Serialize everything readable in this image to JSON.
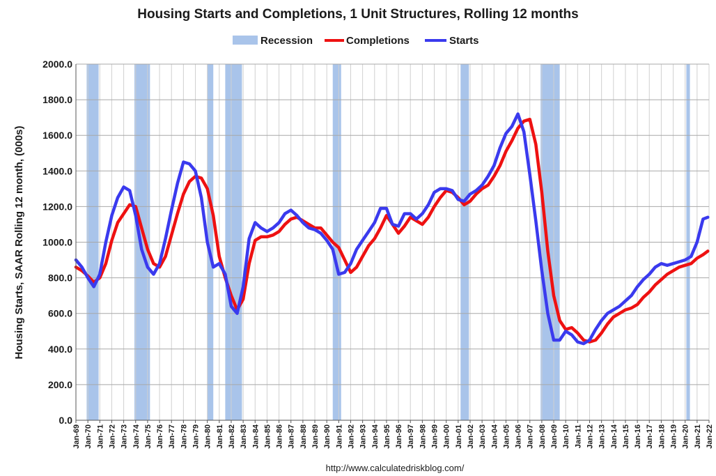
{
  "chart_data": {
    "type": "line",
    "title": "Housing Starts and Completions, 1 Unit Structures, Rolling 12 months",
    "ylabel": "Housing Starts, SAAR Rolling 12 month, (000s)",
    "source": "http://www.calculatedriskblog.com/",
    "xlim": [
      1969.0,
      2022.0
    ],
    "ylim": [
      0,
      2000
    ],
    "yticks": [
      "0.0",
      "200.0",
      "400.0",
      "600.0",
      "800.0",
      "1000.0",
      "1200.0",
      "1400.0",
      "1600.0",
      "1800.0",
      "2000.0"
    ],
    "xticks": [
      "Jan-69",
      "Jan-70",
      "Jan-71",
      "Jan-72",
      "Jan-73",
      "Jan-74",
      "Jan-75",
      "Jan-76",
      "Jan-77",
      "Jan-78",
      "Jan-79",
      "Jan-80",
      "Jan-81",
      "Jan-82",
      "Jan-83",
      "Jan-84",
      "Jan-85",
      "Jan-86",
      "Jan-87",
      "Jan-88",
      "Jan-89",
      "Jan-90",
      "Jan-91",
      "Jan-92",
      "Jan-93",
      "Jan-94",
      "Jan-95",
      "Jan-96",
      "Jan-97",
      "Jan-98",
      "Jan-99",
      "Jan-00",
      "Jan-01",
      "Jan-02",
      "Jan-03",
      "Jan-04",
      "Jan-05",
      "Jan-06",
      "Jan-07",
      "Jan-08",
      "Jan-09",
      "Jan-10",
      "Jan-11",
      "Jan-12",
      "Jan-13",
      "Jan-14",
      "Jan-15",
      "Jan-16",
      "Jan-17",
      "Jan-18",
      "Jan-19",
      "Jan-20",
      "Jan-21",
      "Jan-22"
    ],
    "grid": true,
    "legend_position": "top-center",
    "legend": [
      {
        "name": "Recession",
        "type": "band",
        "color": "#a9c4ea"
      },
      {
        "name": "Completions",
        "type": "line",
        "color": "#ee1111"
      },
      {
        "name": "Starts",
        "type": "line",
        "color": "#3a3aee"
      }
    ],
    "recessions": [
      [
        1969.9,
        1970.9
      ],
      [
        1973.9,
        1975.2
      ],
      [
        1980.0,
        1980.5
      ],
      [
        1981.5,
        1982.9
      ],
      [
        1990.5,
        1991.2
      ],
      [
        2001.2,
        2001.9
      ],
      [
        2007.9,
        2009.5
      ],
      [
        2020.1,
        2020.4
      ]
    ],
    "series": [
      {
        "name": "Completions",
        "color": "#ee1111",
        "x": [
          1969.0,
          1969.5,
          1970.0,
          1970.5,
          1971.0,
          1971.5,
          1972.0,
          1972.5,
          1973.0,
          1973.5,
          1974.0,
          1974.5,
          1975.0,
          1975.5,
          1976.0,
          1976.5,
          1977.0,
          1977.5,
          1978.0,
          1978.5,
          1979.0,
          1979.5,
          1980.0,
          1980.5,
          1981.0,
          1981.5,
          1982.0,
          1982.5,
          1983.0,
          1983.5,
          1984.0,
          1984.5,
          1985.0,
          1985.5,
          1986.0,
          1986.5,
          1987.0,
          1987.5,
          1988.0,
          1988.5,
          1989.0,
          1989.5,
          1990.0,
          1990.5,
          1991.0,
          1991.5,
          1992.0,
          1992.5,
          1993.0,
          1993.5,
          1994.0,
          1994.5,
          1995.0,
          1995.5,
          1996.0,
          1996.5,
          1997.0,
          1997.5,
          1998.0,
          1998.5,
          1999.0,
          1999.5,
          2000.0,
          2000.5,
          2001.0,
          2001.5,
          2002.0,
          2002.5,
          2003.0,
          2003.5,
          2004.0,
          2004.5,
          2005.0,
          2005.5,
          2006.0,
          2006.5,
          2007.0,
          2007.5,
          2008.0,
          2008.5,
          2009.0,
          2009.5,
          2010.0,
          2010.5,
          2011.0,
          2011.5,
          2012.0,
          2012.5,
          2013.0,
          2013.5,
          2014.0,
          2014.5,
          2015.0,
          2015.5,
          2016.0,
          2016.5,
          2017.0,
          2017.5,
          2018.0,
          2018.5,
          2019.0,
          2019.5,
          2020.0,
          2020.5,
          2021.0,
          2021.5,
          2021.9
        ],
        "values": [
          860,
          840,
          810,
          775,
          800,
          880,
          1010,
          1110,
          1160,
          1210,
          1200,
          1080,
          960,
          880,
          860,
          920,
          1040,
          1160,
          1270,
          1340,
          1370,
          1360,
          1300,
          1150,
          920,
          800,
          700,
          620,
          680,
          880,
          1010,
          1030,
          1030,
          1040,
          1060,
          1100,
          1130,
          1140,
          1120,
          1100,
          1080,
          1080,
          1040,
          1000,
          970,
          900,
          830,
          860,
          920,
          980,
          1020,
          1080,
          1150,
          1100,
          1050,
          1090,
          1140,
          1120,
          1100,
          1140,
          1200,
          1250,
          1290,
          1280,
          1250,
          1210,
          1230,
          1270,
          1300,
          1320,
          1370,
          1430,
          1510,
          1570,
          1640,
          1680,
          1690,
          1550,
          1280,
          950,
          700,
          560,
          510,
          520,
          490,
          450,
          440,
          450,
          490,
          540,
          580,
          600,
          620,
          630,
          650,
          690,
          720,
          760,
          790,
          820,
          840,
          860,
          870,
          880,
          910,
          930,
          950
        ]
      },
      {
        "name": "Starts",
        "color": "#3a3aee",
        "x": [
          1969.0,
          1969.5,
          1970.0,
          1970.5,
          1971.0,
          1971.5,
          1972.0,
          1972.5,
          1973.0,
          1973.5,
          1974.0,
          1974.5,
          1975.0,
          1975.5,
          1976.0,
          1976.5,
          1977.0,
          1977.5,
          1978.0,
          1978.5,
          1979.0,
          1979.5,
          1980.0,
          1980.5,
          1981.0,
          1981.5,
          1982.0,
          1982.5,
          1983.0,
          1983.5,
          1984.0,
          1984.5,
          1985.0,
          1985.5,
          1986.0,
          1986.5,
          1987.0,
          1987.5,
          1988.0,
          1988.5,
          1989.0,
          1989.5,
          1990.0,
          1990.5,
          1991.0,
          1991.5,
          1992.0,
          1992.5,
          1993.0,
          1993.5,
          1994.0,
          1994.5,
          1995.0,
          1995.5,
          1996.0,
          1996.5,
          1997.0,
          1997.5,
          1998.0,
          1998.5,
          1999.0,
          1999.5,
          2000.0,
          2000.5,
          2001.0,
          2001.5,
          2002.0,
          2002.5,
          2003.0,
          2003.5,
          2004.0,
          2004.5,
          2005.0,
          2005.5,
          2006.0,
          2006.5,
          2007.0,
          2007.5,
          2008.0,
          2008.5,
          2009.0,
          2009.5,
          2010.0,
          2010.5,
          2011.0,
          2011.5,
          2012.0,
          2012.5,
          2013.0,
          2013.5,
          2014.0,
          2014.5,
          2015.0,
          2015.5,
          2016.0,
          2016.5,
          2017.0,
          2017.5,
          2018.0,
          2018.5,
          2019.0,
          2019.5,
          2020.0,
          2020.5,
          2021.0,
          2021.5,
          2021.9
        ],
        "values": [
          900,
          860,
          800,
          750,
          820,
          1000,
          1150,
          1250,
          1310,
          1290,
          1150,
          960,
          860,
          820,
          880,
          1020,
          1180,
          1330,
          1450,
          1440,
          1400,
          1250,
          1000,
          860,
          880,
          820,
          640,
          600,
          750,
          1020,
          1110,
          1080,
          1060,
          1080,
          1110,
          1160,
          1180,
          1150,
          1110,
          1080,
          1070,
          1050,
          1010,
          960,
          820,
          830,
          880,
          960,
          1010,
          1060,
          1110,
          1190,
          1190,
          1100,
          1090,
          1160,
          1160,
          1130,
          1160,
          1210,
          1280,
          1300,
          1300,
          1290,
          1240,
          1230,
          1270,
          1290,
          1320,
          1370,
          1430,
          1530,
          1610,
          1650,
          1720,
          1620,
          1380,
          1120,
          840,
          600,
          450,
          450,
          500,
          480,
          440,
          430,
          450,
          510,
          560,
          600,
          620,
          640,
          670,
          700,
          750,
          790,
          820,
          860,
          880,
          870,
          880,
          890,
          900,
          920,
          1000,
          1130,
          1140
        ]
      }
    ]
  }
}
